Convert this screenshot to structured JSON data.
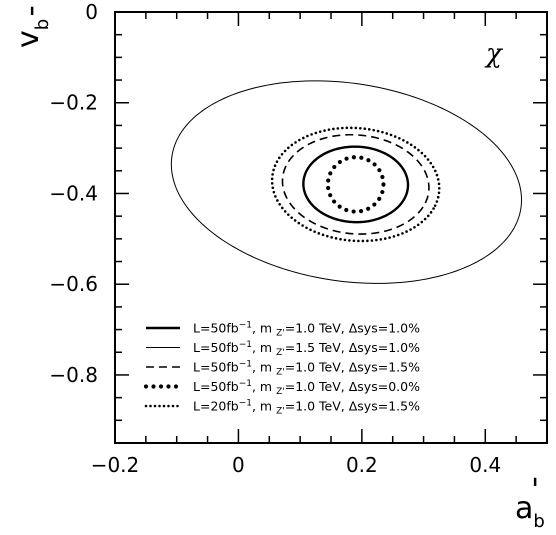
{
  "chart_data": {
    "type": "line",
    "title": "",
    "annotation": "χ",
    "xlabel": "a'_b",
    "ylabel": "v'_b",
    "xlim": [
      -0.2,
      0.5
    ],
    "ylim": [
      -0.95,
      0
    ],
    "xticks": [
      -0.2,
      0,
      0.2,
      0.4
    ],
    "xtick_labels": [
      "−0.2",
      "0",
      "0.2",
      "0.4"
    ],
    "yticks": [
      0,
      -0.2,
      -0.4,
      -0.6,
      -0.8
    ],
    "ytick_labels": [
      "0",
      "−0.2",
      "−0.4",
      "−0.6",
      "−0.8"
    ],
    "grid": false,
    "legend_position": "bottom-left",
    "series": [
      {
        "name": "L=50fb⁻¹, m_Z'=1.0 TeV, Δsys=1.0%",
        "label": {
          "main": "L=50fb",
          "sup": "−1",
          "mid": ", m",
          "sub": "Z'",
          "rest": "=1.0 TeV, Δsys=1.0%"
        },
        "style": "solid-thick",
        "ellipse": {
          "cx": 0.19,
          "cy": -0.38,
          "rx": 0.085,
          "ry": 0.083,
          "angle_deg": -20
        }
      },
      {
        "name": "L=50fb⁻¹, m_Z'=1.5 TeV, Δsys=1.0%",
        "label": {
          "main": "L=50fb",
          "sup": "−1",
          "mid": ", m",
          "sub": "Z'",
          "rest": "=1.5 TeV, Δsys=1.0%"
        },
        "style": "solid-thin",
        "ellipse": {
          "cx": 0.175,
          "cy": -0.375,
          "rx": 0.29,
          "ry": 0.215,
          "angle_deg": -18
        }
      },
      {
        "name": "L=50fb⁻¹, m_Z'=1.0 TeV, Δsys=1.5%",
        "label": {
          "main": "L=50fb",
          "sup": "−1",
          "mid": ", m",
          "sub": "Z'",
          "rest": "=1.0 TeV, Δsys=1.5%"
        },
        "style": "dashed",
        "ellipse": {
          "cx": 0.19,
          "cy": -0.38,
          "rx": 0.12,
          "ry": 0.108,
          "angle_deg": -20
        }
      },
      {
        "name": "L=50fb⁻¹, m_Z'=1.0 TeV, Δsys=0.0%",
        "label": {
          "main": "L=50fb",
          "sup": "−1",
          "mid": ", m",
          "sub": "Z'",
          "rest": "=1.0 TeV, Δsys=0.0%"
        },
        "style": "dotted",
        "ellipse": {
          "cx": 0.19,
          "cy": -0.38,
          "rx": 0.045,
          "ry": 0.06,
          "angle_deg": 0
        }
      },
      {
        "name": "L=20fb⁻¹, m_Z'=1.0 TeV, Δsys=1.5%",
        "label": {
          "main": "L=20fb",
          "sup": "−1",
          "mid": ", m",
          "sub": "Z'",
          "rest": "=1.0 TeV, Δsys=1.5%"
        },
        "style": "dash-dot",
        "ellipse": {
          "cx": 0.19,
          "cy": -0.38,
          "rx": 0.137,
          "ry": 0.123,
          "angle_deg": -20
        }
      }
    ]
  }
}
